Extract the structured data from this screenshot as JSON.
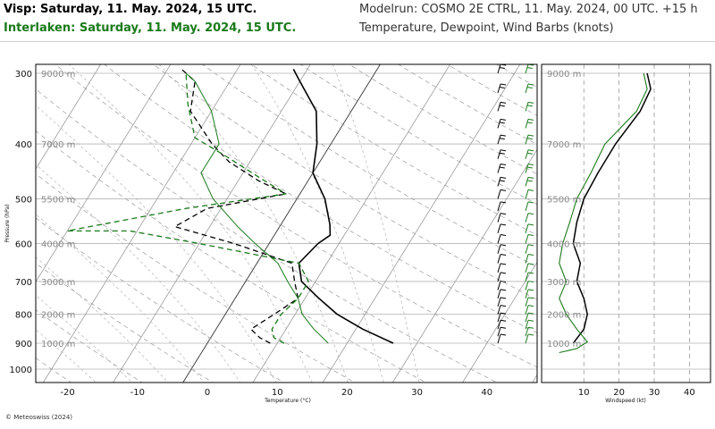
{
  "header": {
    "visp_title": "Visp: Saturday, 11. May. 2024, 15 UTC.",
    "interlaken_title": "Interlaken: Saturday, 11. May. 2024, 15 UTC.",
    "model_run": "Modelrun: COSMO 2E CTRL, 11. May. 2024, 00 UTC. +15 h",
    "variables": "Temperature, Dewpoint, Wind Barbs (knots)"
  },
  "footer": "© Meteoswiss (2024)",
  "colors": {
    "visp": "#000000",
    "interlaken": "#1a7a1a",
    "grid": "#b4b4b4",
    "isotherm": "#9a9a9a"
  },
  "chart_data": [
    {
      "type": "line",
      "title": "",
      "xlabel": "Temperature (°C)",
      "ylabel": "Pressure (hPa)",
      "y_scale": "log-pressure",
      "xlim": [
        -25,
        47
      ],
      "ylim": [
        1100,
        285
      ],
      "x_ticks": [
        -20,
        -10,
        0,
        10,
        20,
        30,
        40
      ],
      "x_tick_labels": [
        "-20",
        "-10",
        "0",
        "10",
        "20",
        "30",
        "40"
      ],
      "y_ticks": [
        300,
        400,
        500,
        600,
        700,
        800,
        900,
        1000
      ],
      "y_tick_labels": [
        "300",
        "400",
        "500",
        "600",
        "700",
        "800",
        "900",
        "1000"
      ],
      "altitude_labels": [
        {
          "p": 300,
          "label": "9000 m"
        },
        {
          "p": 400,
          "label": "7000 m"
        },
        {
          "p": 500,
          "label": "5500 m"
        },
        {
          "p": 600,
          "label": "4000 m"
        },
        {
          "p": 700,
          "label": "3000 m"
        },
        {
          "p": 800,
          "label": "2000 m"
        },
        {
          "p": 900,
          "label": "1000 m"
        }
      ],
      "grid": true,
      "series": [
        {
          "name": "Visp",
          "kind": "temperature",
          "style": "solid",
          "points": [
            [
              26.6,
              900
            ],
            [
              21,
              850
            ],
            [
              16,
              800
            ],
            [
              12,
              750
            ],
            [
              8,
              700
            ],
            [
              6,
              650
            ],
            [
              7,
              600
            ],
            [
              8,
              580
            ],
            [
              7,
              555
            ],
            [
              4,
              500
            ],
            [
              0,
              450
            ],
            [
              -2,
              400
            ],
            [
              -5,
              350
            ],
            [
              -10,
              310
            ],
            [
              -12,
              295
            ]
          ]
        },
        {
          "name": "Visp",
          "kind": "dewpoint",
          "style": "dashed",
          "points": [
            [
              9,
              900
            ],
            [
              7,
              880
            ],
            [
              5,
              850
            ],
            [
              7,
              800
            ],
            [
              9,
              750
            ],
            [
              7,
              700
            ],
            [
              5,
              650
            ],
            [
              -5,
              600
            ],
            [
              -15,
              560
            ],
            [
              -12,
              520
            ],
            [
              -2,
              490
            ],
            [
              -7,
              465
            ],
            [
              -13,
              430
            ],
            [
              -17,
              400
            ],
            [
              -23,
              350
            ],
            [
              -25,
              310
            ],
            [
              -28,
              295
            ]
          ]
        },
        {
          "name": "Interlaken",
          "kind": "temperature",
          "style": "solid",
          "points": [
            [
              17.3,
              900
            ],
            [
              14,
              850
            ],
            [
              11,
              800
            ],
            [
              9,
              750
            ],
            [
              6,
              700
            ],
            [
              3,
              650
            ],
            [
              -2,
              600
            ],
            [
              -6,
              560
            ],
            [
              -12,
              500
            ],
            [
              -16,
              450
            ],
            [
              -16,
              400
            ],
            [
              -20,
              350
            ],
            [
              -25,
              310
            ],
            [
              -27,
              300
            ]
          ]
        },
        {
          "name": "Interlaken",
          "kind": "dewpoint",
          "style": "dashed",
          "points": [
            [
              11,
              900
            ],
            [
              9,
              880
            ],
            [
              8,
              850
            ],
            [
              8,
              800
            ],
            [
              9,
              750
            ],
            [
              9,
              700
            ],
            [
              6,
              650
            ],
            [
              -10,
              600
            ],
            [
              -21,
              570
            ],
            [
              -30,
              570
            ],
            [
              -15,
              520
            ],
            [
              -2,
              490
            ],
            [
              -7,
              460
            ],
            [
              -14,
              420
            ],
            [
              -20,
              390
            ],
            [
              -24,
              340
            ],
            [
              -27,
              300
            ]
          ]
        }
      ]
    },
    {
      "type": "line",
      "title": "",
      "xlabel": "Windspeed (kt)",
      "ylabel": "",
      "xlim": [
        -2,
        46
      ],
      "x_ticks": [
        10,
        20,
        30,
        40
      ],
      "x_tick_labels": [
        "10",
        "20",
        "30",
        "40"
      ],
      "altitude_labels": [
        "9000 m",
        "7000 m",
        "5500 m",
        "4000 m",
        "3000 m",
        "2000 m",
        "1000 m"
      ],
      "grid": true,
      "series": [
        {
          "name": "Visp",
          "points": [
            [
              28,
              300
            ],
            [
              29,
              320
            ],
            [
              26,
              350
            ],
            [
              19,
              400
            ],
            [
              14,
              450
            ],
            [
              10,
              500
            ],
            [
              8,
              550
            ],
            [
              7,
              600
            ],
            [
              9,
              650
            ],
            [
              8,
              700
            ],
            [
              10,
              750
            ],
            [
              11,
              800
            ],
            [
              10,
              850
            ],
            [
              7,
              900
            ]
          ]
        },
        {
          "name": "Interlaken",
          "points": [
            [
              27,
              300
            ],
            [
              28,
              320
            ],
            [
              25,
              350
            ],
            [
              16,
              400
            ],
            [
              12,
              450
            ],
            [
              8,
              500
            ],
            [
              6,
              550
            ],
            [
              4,
              600
            ],
            [
              3,
              650
            ],
            [
              5,
              700
            ],
            [
              3,
              750
            ],
            [
              5,
              800
            ],
            [
              8,
              850
            ],
            [
              11,
              895
            ],
            [
              8,
              920
            ],
            [
              3,
              935
            ]
          ]
        }
      ]
    }
  ]
}
